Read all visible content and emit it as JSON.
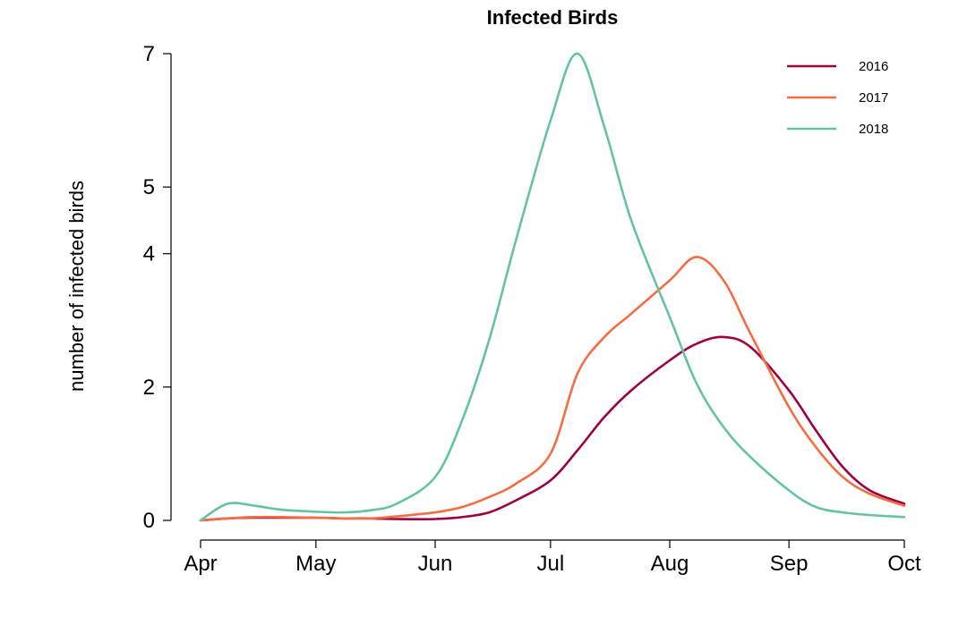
{
  "chart_data": {
    "type": "line",
    "title": "Infected Birds",
    "xlabel": "",
    "ylabel": "number of infected birds",
    "x_ticks": [
      "Apr",
      "May",
      "Jun",
      "Jul",
      "Aug",
      "Sep",
      "Oct"
    ],
    "xlim": [
      "Apr",
      "Oct"
    ],
    "y_ticks": [
      0,
      2,
      4,
      5,
      7
    ],
    "ylim": [
      0,
      7
    ],
    "grid": false,
    "legend_position": "top-right",
    "x": [
      "Apr 1",
      "Apr 8",
      "Apr 15",
      "Apr 22",
      "May 1",
      "May 8",
      "May 15",
      "May 22",
      "Jun 1",
      "Jun 8",
      "Jun 15",
      "Jun 22",
      "Jul 1",
      "Jul 8",
      "Jul 15",
      "Jul 22",
      "Aug 1",
      "Aug 8",
      "Aug 15",
      "Aug 22",
      "Sep 1",
      "Sep 8",
      "Sep 15",
      "Sep 22",
      "Oct 1"
    ],
    "series": [
      {
        "name": "2016",
        "color": "#9e0142",
        "values": [
          0.0,
          0.03,
          0.04,
          0.04,
          0.04,
          0.03,
          0.03,
          0.02,
          0.02,
          0.05,
          0.12,
          0.3,
          0.6,
          1.05,
          1.55,
          1.95,
          2.4,
          2.65,
          2.75,
          2.6,
          1.95,
          1.35,
          0.8,
          0.45,
          0.25
        ]
      },
      {
        "name": "2017",
        "color": "#f46d43",
        "values": [
          0.0,
          0.03,
          0.05,
          0.05,
          0.04,
          0.03,
          0.03,
          0.06,
          0.12,
          0.2,
          0.35,
          0.55,
          1.0,
          2.2,
          2.75,
          3.1,
          3.6,
          3.95,
          3.6,
          2.8,
          1.7,
          1.1,
          0.65,
          0.4,
          0.22
        ]
      },
      {
        "name": "2018",
        "color": "#66c2a5",
        "values": [
          0.0,
          0.25,
          0.22,
          0.16,
          0.13,
          0.12,
          0.15,
          0.25,
          0.65,
          1.5,
          2.7,
          4.2,
          6.0,
          7.0,
          5.9,
          4.5,
          3.05,
          2.05,
          1.4,
          0.95,
          0.45,
          0.2,
          0.12,
          0.08,
          0.05
        ]
      }
    ]
  }
}
